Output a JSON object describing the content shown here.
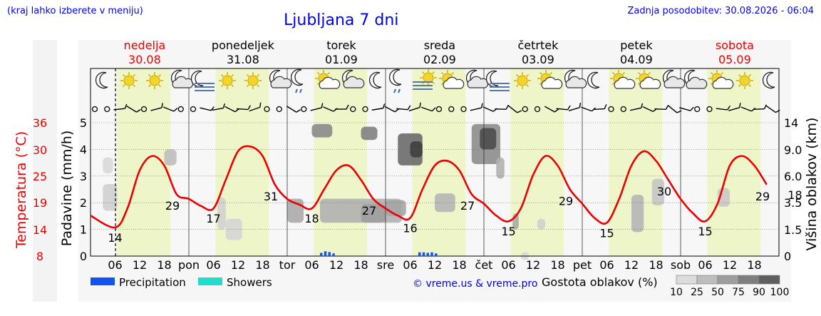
{
  "header": {
    "hint": "(kraj lahko izberete v meniju)",
    "title": "Ljubljana 7 dni",
    "updated": "Zadnja posodobitev: 30.08.2026 - 06:04"
  },
  "days": [
    {
      "name": "nedelja",
      "date": "30.08",
      "weekend": true
    },
    {
      "name": "ponedeljek",
      "date": "31.08",
      "weekend": false
    },
    {
      "name": "torek",
      "date": "01.09",
      "weekend": false
    },
    {
      "name": "sreda",
      "date": "02.09",
      "weekend": false
    },
    {
      "name": "četrtek",
      "date": "03.09",
      "weekend": false
    },
    {
      "name": "petek",
      "date": "04.09",
      "weekend": false
    },
    {
      "name": "sobota",
      "date": "05.09",
      "weekend": true
    }
  ],
  "weather_icons": [
    [
      "moon",
      "sun",
      "sun",
      "cloud"
    ],
    [
      "fog-moon",
      "sun",
      "sun",
      "cloud"
    ],
    [
      "moon-shower",
      "sun-cloud",
      "cloud",
      "moon"
    ],
    [
      "moon-shower",
      "fog",
      "sun-cloud",
      "cloud"
    ],
    [
      "fog-moon",
      "sun",
      "sun-cloud",
      "cloud"
    ],
    [
      "moon",
      "sun-cloud",
      "sun-cloud",
      "cloud"
    ],
    [
      "moon-cloud",
      "sun-cloud",
      "sun",
      "moon"
    ]
  ],
  "footer": {
    "legend_precip": "Precipitation",
    "legend_showers": "Showers",
    "credit": "© vreme.us & vreme.pro",
    "cloud_scale_title": "Gostota oblakov (%)",
    "cloud_scale_labels": [
      "10",
      "25",
      "50",
      "75",
      "90",
      "100"
    ]
  },
  "colors": {
    "temperature": "#ee0000",
    "precipitation": "#1155ee",
    "showers": "#22ddcc",
    "daytime_band": "#eef5c8",
    "link_blue": "#0000ee",
    "weekend_red": "#ee0000"
  },
  "chart_data": {
    "type": "line",
    "title": "Ljubljana 7 dni",
    "y_left_label": "Padavine (mm/h)",
    "y_left_ticks": [
      "0",
      "1",
      "2",
      "3",
      "4",
      "5"
    ],
    "y_temp_label": "Temperatura (°C)",
    "y_temp_ticks": [
      "8",
      "14",
      "19",
      "25",
      "30",
      "36"
    ],
    "y_right_label": "Višina oblakov (km)",
    "y_right_ticks": [
      "0",
      "1.5",
      "3.5",
      "6.0",
      "9.0",
      "14"
    ],
    "x_tick_labels": [
      "06",
      "12",
      "18",
      "pon",
      "06",
      "12",
      "18",
      "tor",
      "06",
      "12",
      "18",
      "sre",
      "06",
      "12",
      "18",
      "čet",
      "06",
      "12",
      "18",
      "pet",
      "06",
      "12",
      "18",
      "sob",
      "06",
      "12",
      "18"
    ],
    "now_line": "30.08 06:04",
    "temperature_series": {
      "name": "Temperatura",
      "unit": "°C",
      "x_hours": [
        0,
        6,
        9,
        12,
        15,
        18,
        21,
        24,
        27,
        30,
        33,
        36,
        39,
        42,
        45,
        48,
        51,
        54,
        57,
        60,
        63,
        66,
        69,
        72,
        75,
        78,
        81,
        84,
        87,
        90,
        93,
        96,
        99,
        102,
        105,
        108,
        111,
        114,
        117,
        120,
        123,
        126,
        129,
        132,
        135,
        138,
        141,
        144,
        147,
        150,
        153,
        156,
        159,
        162,
        165
      ],
      "values": [
        16.5,
        14,
        18,
        26,
        29,
        27,
        21,
        20,
        18.5,
        18,
        24,
        30,
        31,
        29,
        23,
        20,
        18.8,
        18,
        22,
        26,
        27,
        24,
        20,
        18,
        16.5,
        16,
        22,
        27,
        28,
        26,
        21,
        19,
        16.5,
        15.3,
        18,
        25,
        29,
        27,
        22,
        19,
        16,
        15,
        20,
        27,
        30,
        28,
        24,
        20,
        17,
        15.3,
        19,
        27,
        29,
        27,
        23
      ]
    },
    "temperature_labels": [
      {
        "hour": 6,
        "value": "14"
      },
      {
        "hour": 20,
        "value": "29"
      },
      {
        "hour": 30,
        "value": "17"
      },
      {
        "hour": 44,
        "value": "31"
      },
      {
        "hour": 54,
        "value": "18"
      },
      {
        "hour": 68,
        "value": "27"
      },
      {
        "hour": 78,
        "value": "16"
      },
      {
        "hour": 92,
        "value": "27"
      },
      {
        "hour": 102,
        "value": "15"
      },
      {
        "hour": 116,
        "value": "29"
      },
      {
        "hour": 126,
        "value": "15"
      },
      {
        "hour": 140,
        "value": "30"
      },
      {
        "hour": 150,
        "value": "15"
      },
      {
        "hour": 164,
        "value": "29"
      },
      {
        "hour": 174,
        "value": "18"
      }
    ],
    "precipitation_bars": {
      "name": "Precipitation",
      "unit": "mm/h",
      "x_hours": [
        56,
        57,
        58,
        59,
        80,
        81,
        82,
        83,
        84
      ],
      "values": [
        0.12,
        0.18,
        0.15,
        0.1,
        0.14,
        0.14,
        0.12,
        0.14,
        0.1
      ]
    }
  }
}
